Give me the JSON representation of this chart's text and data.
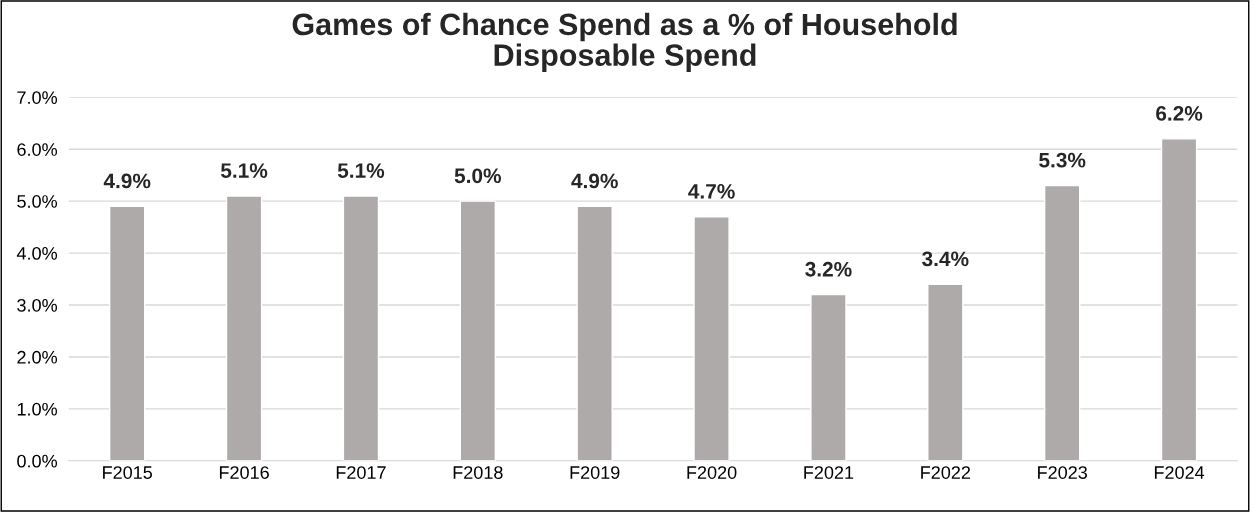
{
  "chart_data": {
    "type": "bar",
    "title": "Games of Chance Spend as a % of Household\nDisposable Spend",
    "categories": [
      "F2015",
      "F2016",
      "F2017",
      "F2018",
      "F2019",
      "F2020",
      "F2021",
      "F2022",
      "F2023",
      "F2024"
    ],
    "values": [
      4.9,
      5.1,
      5.1,
      5.0,
      4.9,
      4.7,
      3.2,
      3.4,
      5.3,
      6.2
    ],
    "value_labels": [
      "4.9%",
      "5.1%",
      "5.1%",
      "5.0%",
      "4.9%",
      "4.7%",
      "3.2%",
      "3.4%",
      "5.3%",
      "6.2%"
    ],
    "color": "#aeaaaa",
    "ylim": [
      0,
      7
    ],
    "yticks": [
      {
        "value": 0,
        "label": "0.0%"
      },
      {
        "value": 1,
        "label": "1.0%"
      },
      {
        "value": 2,
        "label": "2.0%"
      },
      {
        "value": 3,
        "label": "3.0%"
      },
      {
        "value": 4,
        "label": "4.0%"
      },
      {
        "value": 5,
        "label": "5.0%"
      },
      {
        "value": 6,
        "label": "6.0%"
      },
      {
        "value": 7,
        "label": "7.0%"
      }
    ],
    "grid": "y"
  }
}
